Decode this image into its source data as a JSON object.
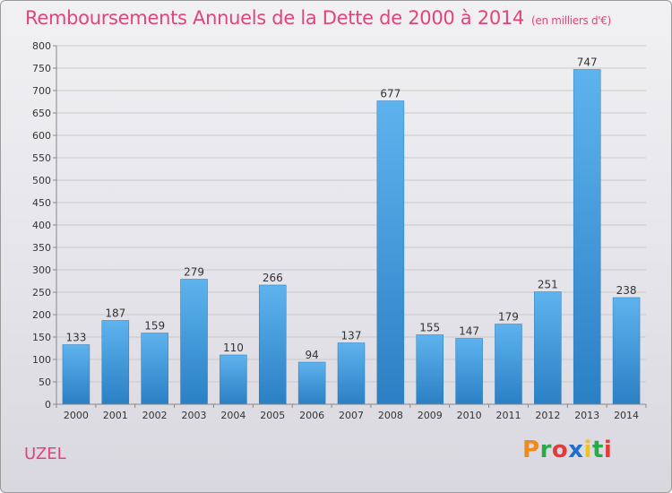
{
  "header": {
    "title": "Remboursements Annuels de la Dette de 2000 à 2014",
    "unit": "(en milliers d'€)"
  },
  "footer": {
    "commune": "UZEL",
    "logo_text": "Proxiti",
    "logo_letters": [
      "P",
      "r",
      "o",
      "x",
      "i",
      "t",
      "i"
    ],
    "logo_colors": [
      "#f08a1c",
      "#2aa84a",
      "#e23b3b",
      "#1f6fd0",
      "#f0c21c",
      "#2aa84a",
      "#e23b3b"
    ]
  },
  "chart_data": {
    "type": "bar",
    "title": "Remboursements Annuels de la Dette de 2000 à 2014",
    "categories": [
      "2000",
      "2001",
      "2002",
      "2003",
      "2004",
      "2005",
      "2006",
      "2007",
      "2008",
      "2009",
      "2010",
      "2011",
      "2012",
      "2013",
      "2014"
    ],
    "values": [
      133,
      187,
      159,
      279,
      110,
      266,
      94,
      137,
      677,
      155,
      147,
      179,
      251,
      747,
      238
    ],
    "ylim": [
      0,
      800
    ],
    "yticks": [
      0,
      50,
      100,
      150,
      200,
      250,
      300,
      350,
      400,
      450,
      500,
      550,
      600,
      650,
      700,
      750,
      800
    ],
    "xlabel": "",
    "ylabel": "",
    "grid": true,
    "bar_color": "#3a95dd"
  }
}
